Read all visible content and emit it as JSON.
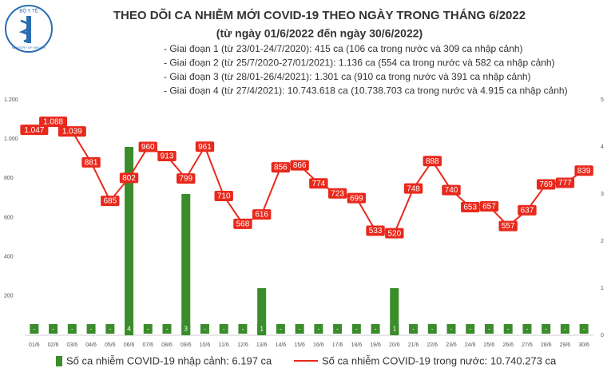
{
  "logo": {
    "name": "BỘ Y TẾ",
    "subtitle": "MINISTRY OF HEALTH"
  },
  "chart_data": {
    "type": "combo",
    "title": "THEO DÕI CA NHIỄM MỚI COVID-19 THEO NGÀY TRONG THÁNG 6/2022",
    "subtitle": "(từ ngày 01/6/2022 đến ngày 30/6/2022)",
    "notes": [
      "- Giai đoạn 1 (từ 23/01-24/7/2020): 415 ca (106 ca trong nước và 309 ca nhập cảnh)",
      "- Giai đoạn 2 (từ 25/7/2020-27/01/2021): 1.136 ca (554 ca trong nước và 582 ca nhập cảnh)",
      "- Giai đoạn 3 (từ 28/01-26/4/2021): 1.301 ca (910 ca trong nước và 391 ca nhập cảnh)",
      "- Giai đoạn 4 (từ 27/4/2021): 10.743.618 ca (10.738.703 ca trong nước và 4.915 ca nhập cảnh)"
    ],
    "categories": [
      "01/6",
      "02/6",
      "03/6",
      "04/6",
      "05/6",
      "06/6",
      "07/6",
      "08/6",
      "09/6",
      "10/6",
      "11/6",
      "12/6",
      "13/6",
      "14/6",
      "15/6",
      "16/6",
      "17/6",
      "18/6",
      "19/6",
      "20/6",
      "21/6",
      "22/6",
      "23/6",
      "24/6",
      "25/6",
      "26/6",
      "27/6",
      "28/6",
      "29/6",
      "30/6"
    ],
    "series": [
      {
        "name": "Số ca nhiễm COVID-19 nhập cảnh: 6.197 ca",
        "color": "#3b8c2a",
        "type": "bar",
        "axis": "y2",
        "values": [
          0,
          0,
          0,
          0,
          0,
          4,
          0,
          0,
          3,
          0,
          0,
          0,
          1,
          0,
          0,
          0,
          0,
          0,
          0,
          1,
          0,
          0,
          0,
          0,
          0,
          0,
          0,
          0,
          0,
          0
        ],
        "value_labels": [
          "-",
          "-",
          "-",
          "-",
          "-",
          "4",
          "-",
          "-",
          "3",
          "-",
          "-",
          "-",
          "1",
          "-",
          "-",
          "-",
          "-",
          "-",
          "-",
          "1",
          "-",
          "-",
          "-",
          "-",
          "-",
          "-",
          "-",
          "-",
          "-",
          "-"
        ]
      },
      {
        "name": "Số ca nhiễm COVID-19 trong nước: 10.740.273 ca",
        "color": "#e8291c",
        "type": "line",
        "values": [
          1047,
          1088,
          1039,
          881,
          685,
          802,
          960,
          913,
          799,
          961,
          710,
          568,
          616,
          856,
          866,
          774,
          723,
          699,
          533,
          520,
          748,
          888,
          740,
          653,
          657,
          557,
          637,
          769,
          777,
          839
        ],
        "value_labels": [
          "1.047",
          "1.088",
          "1.039",
          "881",
          "685",
          "802",
          "960",
          "913",
          "799",
          "961",
          "710",
          "568",
          "616",
          "856",
          "866",
          "774",
          "723",
          "699",
          "533",
          "520",
          "748",
          "888",
          "740",
          "653",
          "657",
          "557",
          "637",
          "769",
          "777",
          "839"
        ]
      }
    ],
    "ylim": [
      0,
      1200
    ],
    "yticks": [
      200,
      400,
      600,
      800,
      {
        "value": 1000,
        "label": "1.000"
      },
      {
        "value": 1200,
        "label": "1.200"
      }
    ],
    "y2lim": [
      0,
      5
    ],
    "y2ticks": [
      0,
      1,
      2,
      3,
      4,
      5
    ]
  }
}
